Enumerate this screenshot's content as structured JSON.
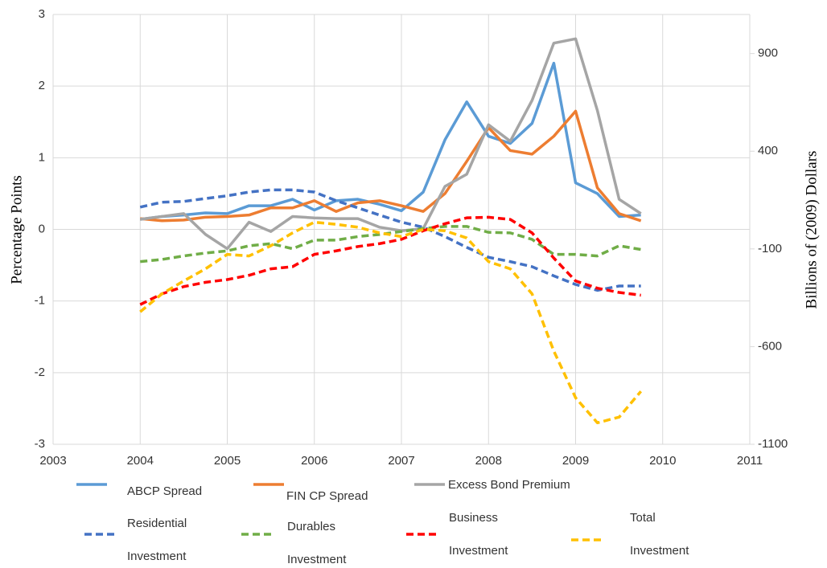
{
  "chart_data": {
    "type": "line",
    "y_label": "Percentage Points",
    "y2_label": "Billions of (2009) Dollars",
    "x": [
      2004,
      2004.25,
      2004.5,
      2004.75,
      2005,
      2005.25,
      2005.5,
      2005.75,
      2006,
      2006.25,
      2006.5,
      2006.75,
      2007,
      2007.25,
      2007.5,
      2007.75,
      2008,
      2008.25,
      2008.5,
      2008.75,
      2009,
      2009.25,
      2009.5,
      2009.75
    ],
    "xlim": [
      2003,
      2011
    ],
    "xticks": [
      2003,
      2004,
      2005,
      2006,
      2007,
      2008,
      2009,
      2010,
      2011
    ],
    "ylim": [
      -3,
      3
    ],
    "yticks": [
      -3,
      -2,
      -1,
      0,
      1,
      2,
      3
    ],
    "y2lim": [
      -1100,
      1100
    ],
    "y2ticks": [
      -1100,
      -600,
      -100,
      400,
      900
    ],
    "grid": true,
    "series": [
      {
        "name": "ABCP Spread",
        "color": "#5b9bd5",
        "dash": false,
        "values": [
          0.14,
          0.18,
          0.2,
          0.23,
          0.22,
          0.33,
          0.33,
          0.42,
          0.27,
          0.4,
          0.42,
          0.35,
          0.26,
          0.52,
          1.25,
          1.78,
          1.3,
          1.2,
          1.48,
          2.32,
          0.65,
          0.5,
          0.18,
          0.2
        ]
      },
      {
        "name": "FIN CP Spread",
        "color": "#ed7d31",
        "dash": false,
        "values": [
          0.15,
          0.12,
          0.13,
          0.17,
          0.18,
          0.2,
          0.3,
          0.3,
          0.4,
          0.25,
          0.37,
          0.4,
          0.33,
          0.25,
          0.5,
          0.95,
          1.42,
          1.1,
          1.05,
          1.3,
          1.65,
          0.58,
          0.22,
          0.12
        ]
      },
      {
        "name": "Excess Bond Premium",
        "color": "#a5a5a5",
        "dash": false,
        "values": [
          0.14,
          0.18,
          0.22,
          -0.07,
          -0.27,
          0.1,
          -0.03,
          0.18,
          0.16,
          0.15,
          0.15,
          0.03,
          -0.02,
          0.01,
          0.6,
          0.77,
          1.46,
          1.23,
          1.8,
          2.6,
          2.66,
          1.66,
          0.42,
          0.22
        ]
      },
      {
        "name": "Residential Investment",
        "color": "#4472c4",
        "dash": true,
        "axis": "y2",
        "values": [
          114,
          139,
          143,
          158,
          172,
          191,
          202,
          202,
          191,
          147,
          110,
          73,
          37,
          11,
          -37,
          -92,
          -143,
          -165,
          -191,
          -238,
          -282,
          -312,
          -290,
          -290
        ]
      },
      {
        "name": "Durables Investment",
        "color": "#70ad47",
        "dash": true,
        "axis": "y2",
        "values": [
          -165,
          -154,
          -136,
          -121,
          -110,
          -84,
          -73,
          -99,
          -55,
          -55,
          -37,
          -26,
          -11,
          4,
          15,
          15,
          -15,
          -18,
          -51,
          -128,
          -128,
          -136,
          -84,
          -103
        ]
      },
      {
        "name": "Business Investment",
        "color": "#ff0000",
        "dash": true,
        "axis": "y2",
        "values": [
          -385,
          -330,
          -293,
          -271,
          -257,
          -235,
          -202,
          -191,
          -128,
          -110,
          -88,
          -73,
          -51,
          -7,
          29,
          59,
          62,
          51,
          -18,
          -147,
          -264,
          -301,
          -323,
          -337
        ]
      },
      {
        "name": "Total Investment",
        "color": "#ffc000",
        "dash": true,
        "axis": "y2",
        "values": [
          -422,
          -330,
          -264,
          -202,
          -128,
          -136,
          -84,
          -18,
          37,
          26,
          11,
          -18,
          -37,
          0,
          -7,
          -44,
          -165,
          -202,
          -330,
          -623,
          -862,
          -990,
          -961,
          -829
        ]
      }
    ]
  }
}
